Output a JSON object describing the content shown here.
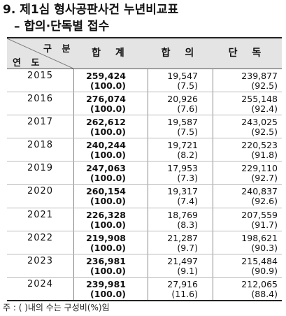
{
  "title": "9. 제1심 형사공판사건 누년비교표",
  "subtitle": "– 합의·단독별 접수",
  "header": {
    "gubun": "구 분",
    "yeondo": "연 도",
    "total": "합 계",
    "hapui": "합 의",
    "dandok": "단 독"
  },
  "rows": [
    {
      "year": "2015",
      "total": "259,424",
      "total_pct": "(100.0)",
      "hapui": "19,547",
      "hapui_pct": "(7.5)",
      "dandok": "239,877",
      "dandok_pct": "(92.5)"
    },
    {
      "year": "2016",
      "total": "276,074",
      "total_pct": "(100.0)",
      "hapui": "20,926",
      "hapui_pct": "(7.6)",
      "dandok": "255,148",
      "dandok_pct": "(92.4)"
    },
    {
      "year": "2017",
      "total": "262,612",
      "total_pct": "(100.0)",
      "hapui": "19,587",
      "hapui_pct": "(7.5)",
      "dandok": "243,025",
      "dandok_pct": "(92.5)"
    },
    {
      "year": "2018",
      "total": "240,244",
      "total_pct": "(100.0)",
      "hapui": "19,721",
      "hapui_pct": "(8.2)",
      "dandok": "220,523",
      "dandok_pct": "(91.8)"
    },
    {
      "year": "2019",
      "total": "247,063",
      "total_pct": "(100.0)",
      "hapui": "17,953",
      "hapui_pct": "(7.3)",
      "dandok": "229,110",
      "dandok_pct": "(92.7)"
    },
    {
      "year": "2020",
      "total": "260,154",
      "total_pct": "(100.0)",
      "hapui": "19,317",
      "hapui_pct": "(7.4)",
      "dandok": "240,837",
      "dandok_pct": "(92.6)"
    },
    {
      "year": "2021",
      "total": "226,328",
      "total_pct": "(100.0)",
      "hapui": "18,769",
      "hapui_pct": "(8.3)",
      "dandok": "207,559",
      "dandok_pct": "(91.7)"
    },
    {
      "year": "2022",
      "total": "219,908",
      "total_pct": "(100.0)",
      "hapui": "21,287",
      "hapui_pct": "(9.7)",
      "dandok": "198,621",
      "dandok_pct": "(90.3)"
    },
    {
      "year": "2023",
      "total": "236,981",
      "total_pct": "(100.0)",
      "hapui": "21,497",
      "hapui_pct": "(9.1)",
      "dandok": "215,484",
      "dandok_pct": "(90.9)"
    },
    {
      "year": "2024",
      "total": "239,981",
      "total_pct": "(100.0)",
      "hapui": "27,916",
      "hapui_pct": "(11.6)",
      "dandok": "212,065",
      "dandok_pct": "(88.4)"
    }
  ],
  "note": "주 : (   )내의 수는 구성비(%)임"
}
